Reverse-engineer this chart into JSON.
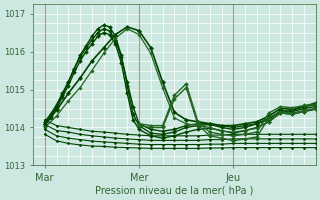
{
  "xlabel": "Pression niveau de la mer( hPa )",
  "ylim": [
    1013.0,
    1017.2
  ],
  "yticks": [
    1013,
    1014,
    1015,
    1016,
    1017
  ],
  "xlim": [
    0,
    144
  ],
  "xtick_positions": [
    6,
    54,
    102
  ],
  "xtick_labels": [
    "Mar",
    "Mer",
    "Jeu"
  ],
  "day_lines": [
    6,
    54,
    102
  ],
  "bg_color": "#cde8e0",
  "minor_grid_color": "#ffffff",
  "major_grid_color": "#e08080",
  "text_color": "#336633",
  "dark_green": "#004400",
  "med_green": "#226622",
  "series": [
    {
      "x": [
        6,
        9,
        12,
        15,
        18,
        21,
        24,
        27,
        30,
        33,
        36,
        39,
        42,
        45,
        48,
        51,
        54,
        60,
        66,
        72,
        78,
        84,
        90,
        96,
        102,
        108,
        114,
        120,
        126,
        132,
        138,
        144
      ],
      "y": [
        1014.15,
        1014.35,
        1014.6,
        1014.9,
        1015.2,
        1015.55,
        1015.85,
        1016.1,
        1016.3,
        1016.5,
        1016.6,
        1016.55,
        1016.3,
        1015.85,
        1015.2,
        1014.55,
        1014.1,
        1013.95,
        1013.9,
        1013.95,
        1014.05,
        1014.1,
        1014.1,
        1014.05,
        1014.0,
        1014.05,
        1014.1,
        1014.25,
        1014.4,
        1014.45,
        1014.55,
        1014.6
      ],
      "color": "#004400",
      "lw": 1.0,
      "marker": "D",
      "ms": 2.0
    },
    {
      "x": [
        6,
        9,
        12,
        15,
        18,
        21,
        24,
        27,
        30,
        33,
        36,
        39,
        42,
        45,
        48,
        51,
        54,
        60,
        66,
        72,
        78,
        84,
        90,
        96,
        102,
        108,
        114,
        120,
        126,
        132,
        138,
        144
      ],
      "y": [
        1014.1,
        1014.3,
        1014.55,
        1014.85,
        1015.2,
        1015.55,
        1015.9,
        1016.15,
        1016.4,
        1016.6,
        1016.7,
        1016.65,
        1016.4,
        1015.9,
        1015.1,
        1014.35,
        1014.05,
        1013.85,
        1013.82,
        1013.88,
        1014.0,
        1014.05,
        1014.08,
        1014.0,
        1013.95,
        1014.0,
        1014.1,
        1014.2,
        1014.45,
        1014.42,
        1014.5,
        1014.55
      ],
      "color": "#004400",
      "lw": 1.0,
      "marker": "D",
      "ms": 2.0
    },
    {
      "x": [
        6,
        9,
        12,
        15,
        18,
        21,
        24,
        27,
        30,
        33,
        36,
        39,
        42,
        45,
        48,
        51,
        54,
        60,
        66,
        72,
        78,
        84,
        90,
        96,
        102,
        108,
        114,
        120,
        126,
        132,
        138,
        144
      ],
      "y": [
        1014.05,
        1014.25,
        1014.5,
        1014.8,
        1015.1,
        1015.45,
        1015.75,
        1016.0,
        1016.2,
        1016.4,
        1016.5,
        1016.45,
        1016.2,
        1015.7,
        1014.9,
        1014.2,
        1013.95,
        1013.78,
        1013.72,
        1013.78,
        1013.88,
        1013.95,
        1013.98,
        1013.92,
        1013.85,
        1013.92,
        1014.0,
        1014.15,
        1014.38,
        1014.35,
        1014.42,
        1014.48
      ],
      "color": "#004400",
      "lw": 1.0,
      "marker": "D",
      "ms": 2.0
    },
    {
      "x": [
        6,
        12,
        18,
        24,
        30,
        36,
        42,
        48,
        54,
        60,
        66,
        72,
        78,
        84,
        90,
        96,
        102,
        108,
        114,
        120,
        126,
        132,
        138,
        144
      ],
      "y": [
        1014.1,
        1014.45,
        1014.9,
        1015.3,
        1015.75,
        1016.1,
        1016.45,
        1016.65,
        1016.55,
        1016.1,
        1015.2,
        1014.4,
        1014.2,
        1014.15,
        1014.1,
        1014.05,
        1014.05,
        1014.1,
        1014.15,
        1014.3,
        1014.5,
        1014.48,
        1014.55,
        1014.65
      ],
      "color": "#004400",
      "lw": 1.2,
      "marker": "D",
      "ms": 2.2
    },
    {
      "x": [
        6,
        12,
        18,
        24,
        30,
        36,
        42,
        48,
        54,
        60,
        66,
        72,
        78,
        84,
        90,
        96,
        102,
        108,
        114,
        120,
        126,
        132,
        138,
        144
      ],
      "y": [
        1014.0,
        1014.3,
        1014.7,
        1015.05,
        1015.5,
        1015.95,
        1016.35,
        1016.6,
        1016.45,
        1015.95,
        1015.05,
        1014.25,
        1014.1,
        1014.05,
        1014.0,
        1013.9,
        1013.88,
        1013.92,
        1013.98,
        1014.15,
        1014.38,
        1014.35,
        1014.42,
        1014.5
      ],
      "color": "#226622",
      "lw": 0.9,
      "marker": "D",
      "ms": 1.8
    },
    {
      "x": [
        6,
        12,
        18,
        24,
        30,
        36,
        42,
        48,
        54,
        60,
        66,
        72,
        78,
        84,
        90,
        96,
        102,
        108,
        114,
        120,
        126,
        132,
        138,
        144
      ],
      "y": [
        1014.2,
        1014.05,
        1014.0,
        1013.95,
        1013.9,
        1013.88,
        1013.85,
        1013.82,
        1013.8,
        1013.78,
        1013.78,
        1013.78,
        1013.78,
        1013.78,
        1013.8,
        1013.8,
        1013.82,
        1013.82,
        1013.82,
        1013.82,
        1013.82,
        1013.82,
        1013.82,
        1013.82
      ],
      "color": "#004400",
      "lw": 0.8,
      "marker": "D",
      "ms": 1.5
    },
    {
      "x": [
        6,
        12,
        18,
        24,
        30,
        36,
        42,
        48,
        54,
        60,
        66,
        72,
        78,
        84,
        90,
        96,
        102,
        108,
        114,
        120,
        126,
        132,
        138,
        144
      ],
      "y": [
        1014.08,
        1013.92,
        1013.88,
        1013.82,
        1013.78,
        1013.75,
        1013.72,
        1013.7,
        1013.68,
        1013.66,
        1013.66,
        1013.66,
        1013.66,
        1013.66,
        1013.68,
        1013.68,
        1013.7,
        1013.7,
        1013.7,
        1013.7,
        1013.7,
        1013.7,
        1013.7,
        1013.7
      ],
      "color": "#004400",
      "lw": 0.8,
      "marker": "D",
      "ms": 1.5
    },
    {
      "x": [
        6,
        12,
        18,
        24,
        30,
        36,
        42,
        48,
        54,
        60,
        66,
        72,
        78,
        84,
        90,
        96,
        102,
        108,
        114,
        120,
        126,
        132,
        138,
        144
      ],
      "y": [
        1013.95,
        1013.78,
        1013.72,
        1013.68,
        1013.64,
        1013.62,
        1013.6,
        1013.58,
        1013.56,
        1013.55,
        1013.55,
        1013.55,
        1013.55,
        1013.55,
        1013.56,
        1013.56,
        1013.58,
        1013.58,
        1013.58,
        1013.58,
        1013.58,
        1013.58,
        1013.58,
        1013.58
      ],
      "color": "#004400",
      "lw": 0.8,
      "marker": "D",
      "ms": 1.5
    },
    {
      "x": [
        6,
        12,
        18,
        24,
        30,
        36,
        42,
        48,
        54,
        60,
        66,
        72,
        78,
        84,
        90,
        96,
        102,
        108,
        114,
        120,
        126,
        132,
        138,
        144
      ],
      "y": [
        1013.82,
        1013.65,
        1013.58,
        1013.54,
        1013.51,
        1013.5,
        1013.48,
        1013.47,
        1013.46,
        1013.45,
        1013.45,
        1013.45,
        1013.45,
        1013.45,
        1013.46,
        1013.46,
        1013.47,
        1013.47,
        1013.47,
        1013.47,
        1013.47,
        1013.47,
        1013.47,
        1013.47
      ],
      "color": "#004400",
      "lw": 0.8,
      "marker": "D",
      "ms": 1.5
    },
    {
      "x": [
        54,
        60,
        66,
        72,
        78,
        84,
        90,
        96,
        102,
        108,
        114,
        120,
        126,
        132,
        138,
        144
      ],
      "y": [
        1014.1,
        1014.05,
        1014.05,
        1014.85,
        1015.15,
        1014.15,
        1013.88,
        1013.82,
        1013.78,
        1013.82,
        1013.88,
        1014.38,
        1014.55,
        1014.52,
        1014.58,
        1014.62
      ],
      "color": "#226622",
      "lw": 1.0,
      "marker": "D",
      "ms": 2.0
    },
    {
      "x": [
        54,
        60,
        66,
        72,
        78,
        84,
        90,
        96,
        102,
        108,
        114,
        120,
        126,
        132,
        138,
        144
      ],
      "y": [
        1014.05,
        1014.0,
        1014.0,
        1014.75,
        1015.05,
        1014.08,
        1013.78,
        1013.72,
        1013.65,
        1013.7,
        1013.75,
        1014.25,
        1014.42,
        1014.38,
        1014.45,
        1014.5
      ],
      "color": "#226622",
      "lw": 1.0,
      "marker": "D",
      "ms": 2.0
    }
  ]
}
